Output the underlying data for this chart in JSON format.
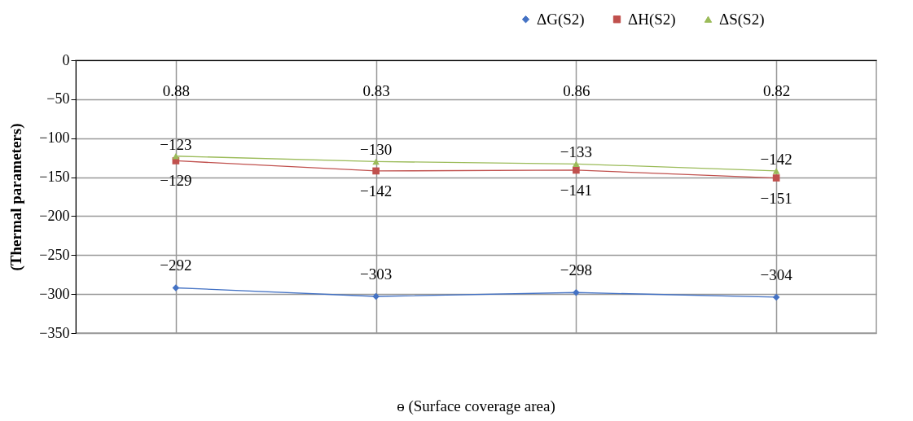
{
  "chart_data": {
    "type": "line",
    "xlabel": "ɵ (Surface coverage area)",
    "ylabel": "(Thermal parameters)",
    "categories": [
      "0.88",
      "0.83",
      "0.86",
      "0.82"
    ],
    "series": [
      {
        "name": "ΔG(S2)",
        "color": "#4472c4",
        "marker": "diamond",
        "values": [
          -292,
          -303,
          -298,
          -304
        ]
      },
      {
        "name": "ΔH(S2)",
        "color": "#c0504d",
        "marker": "square",
        "values": [
          -129,
          -142,
          -141,
          -151
        ]
      },
      {
        "name": "ΔS(S2)",
        "color": "#9bbb59",
        "marker": "triangle",
        "values": [
          -123,
          -130,
          -133,
          -142
        ]
      }
    ],
    "ylim": [
      -350,
      0
    ],
    "yticks": [
      0,
      -50,
      -100,
      -150,
      -200,
      -250,
      -300,
      -350
    ],
    "grid": true,
    "legend": "top right",
    "data_labels": true
  }
}
